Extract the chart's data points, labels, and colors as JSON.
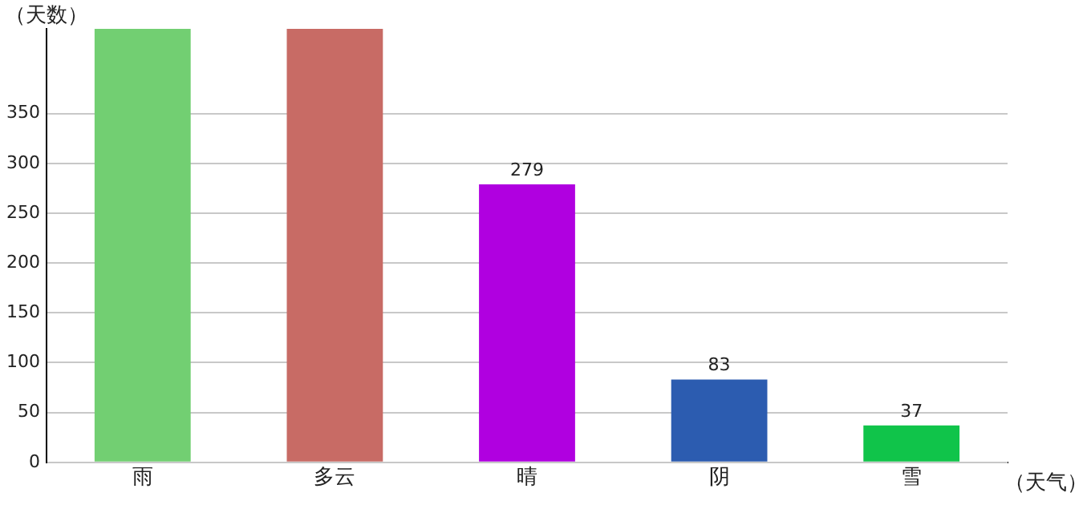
{
  "chart_data": {
    "type": "bar",
    "xlabel": "（天气）",
    "ylabel": "（天数）",
    "categories": [
      "雨",
      "多云",
      "晴",
      "阴",
      "雪"
    ],
    "values": [
      435,
      435,
      279,
      83,
      37
    ],
    "colors": [
      "#72cf72",
      "#c86b65",
      "#b000e0",
      "#2c5cb0",
      "#10c44a"
    ],
    "value_labels": [
      null,
      null,
      "279",
      "83",
      "37"
    ],
    "ylim": [
      0,
      435
    ],
    "yticks": [
      0,
      50,
      100,
      150,
      200,
      250,
      300,
      350
    ],
    "grid": "y",
    "legend": false
  }
}
